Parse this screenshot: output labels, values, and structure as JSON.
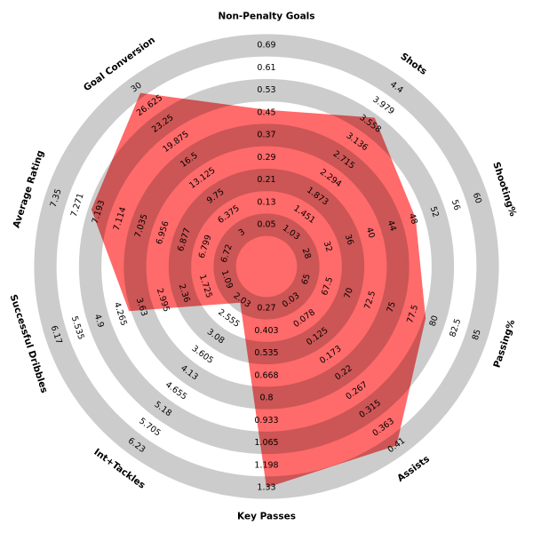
{
  "chart_data": {
    "type": "radar",
    "categories": [
      "Non-Penalty Goals",
      "Shots",
      "Shooting%",
      "Passing%",
      "Assists",
      "Key Passes",
      "Int+Tackles",
      "Successful Dribbles",
      "Average Rating",
      "Goal Conversion"
    ],
    "values": [
      0.46,
      3.7,
      48.5,
      79,
      0.41,
      1.33,
      2.1,
      4.0,
      7.22,
      29
    ],
    "color": "#ff5a5a",
    "rlims": [
      [
        0.05,
        0.69
      ],
      [
        1.03,
        4.4
      ],
      [
        28,
        60
      ],
      [
        65,
        85
      ],
      [
        0.03,
        0.41
      ],
      [
        0.27,
        1.33
      ],
      [
        2.03,
        6.23
      ],
      [
        1.09,
        6.17
      ],
      [
        6.72,
        7.35
      ],
      [
        3,
        30
      ]
    ],
    "rticks": [
      [
        0.05,
        0.13,
        0.21,
        0.29,
        0.37,
        0.45,
        0.53,
        0.61,
        0.69
      ],
      [
        1.03,
        1.451,
        1.873,
        2.294,
        2.715,
        3.136,
        3.558,
        3.979,
        4.4
      ],
      [
        28,
        32,
        36,
        40,
        44,
        48,
        52,
        56,
        60
      ],
      [
        65,
        67.5,
        70,
        72.5,
        75,
        77.5,
        80,
        82.5,
        85
      ],
      [
        0.03,
        0.078,
        0.125,
        0.173,
        0.22,
        0.267,
        0.315,
        0.363,
        0.41
      ],
      [
        0.27,
        0.403,
        0.535,
        0.668,
        0.8,
        0.933,
        1.065,
        1.198,
        1.33
      ],
      [
        2.03,
        2.555,
        3.08,
        3.605,
        4.13,
        4.655,
        5.18,
        5.705,
        6.23
      ],
      [
        1.09,
        1.725,
        2.36,
        2.995,
        3.63,
        4.265,
        4.9,
        5.535,
        6.17
      ],
      [
        6.72,
        6.799,
        6.877,
        6.956,
        7.035,
        7.114,
        7.193,
        7.271,
        7.35
      ],
      [
        3,
        6.375,
        9.75,
        13.125,
        16.5,
        19.875,
        23.25,
        26.625,
        30
      ]
    ]
  }
}
